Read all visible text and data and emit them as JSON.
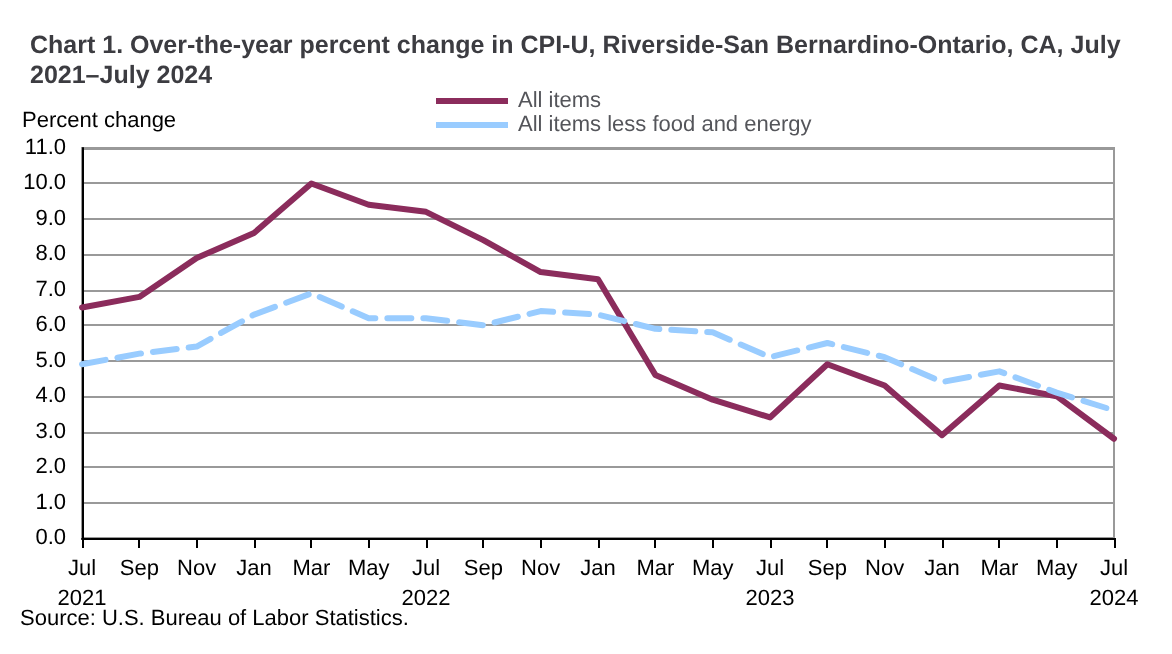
{
  "chart_data": {
    "type": "line",
    "title": "Chart 1. Over-the-year percent change in CPI-U, Riverside-San Bernardino-Ontario, CA, July 2021–July 2024",
    "ylabel": "Percent change",
    "categories": [
      "Jul\n2021",
      "Sep",
      "Nov",
      "Jan",
      "Mar",
      "May",
      "Jul\n2022",
      "Sep",
      "Nov",
      "Jan",
      "Mar",
      "May",
      "Jul\n2023",
      "Sep",
      "Nov",
      "Jan",
      "Mar",
      "May",
      "Jul\n2024"
    ],
    "series": [
      {
        "name": "All items",
        "color": "#8b2c5c",
        "line_style": "solid",
        "values": [
          6.5,
          6.8,
          7.9,
          8.6,
          10.0,
          9.4,
          9.2,
          8.4,
          7.5,
          7.3,
          4.6,
          3.9,
          3.4,
          4.9,
          4.3,
          2.9,
          4.3,
          4.0,
          2.8
        ]
      },
      {
        "name": "All items less food and energy",
        "color": "#99ccff",
        "line_style": "dashed",
        "values": [
          4.9,
          5.2,
          5.4,
          6.3,
          6.9,
          6.2,
          6.2,
          6.0,
          6.4,
          6.3,
          5.9,
          5.8,
          5.1,
          5.5,
          5.1,
          4.4,
          4.7,
          4.1,
          3.6
        ]
      }
    ],
    "ylim": [
      0,
      11
    ],
    "yticks": [
      {
        "value": 0,
        "label": "0.0"
      },
      {
        "value": 1,
        "label": "1.0"
      },
      {
        "value": 2,
        "label": "2.0"
      },
      {
        "value": 3,
        "label": "3.0"
      },
      {
        "value": 4,
        "label": "4.0"
      },
      {
        "value": 5,
        "label": "5.0"
      },
      {
        "value": 6,
        "label": "6.0"
      },
      {
        "value": 7,
        "label": "7.0"
      },
      {
        "value": 8,
        "label": "8.0"
      },
      {
        "value": 9,
        "label": "9.0"
      },
      {
        "value": 10,
        "label": "10.0"
      },
      {
        "value": 11,
        "label": "11.0"
      }
    ],
    "grid": "y",
    "legend": "top",
    "marker": "none",
    "annotations": [
      "Source: U.S. Bureau of Labor Statistics."
    ]
  }
}
